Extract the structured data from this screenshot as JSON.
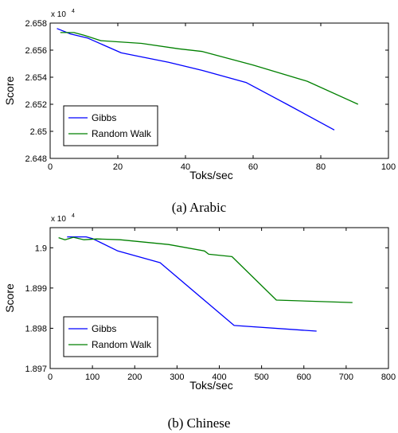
{
  "chart_data": [
    {
      "type": "line",
      "xlabel": "Toks/sec",
      "ylabel": "Score",
      "multiplier_label": "x 10",
      "multiplier_exp": "4",
      "xlim": [
        0,
        100
      ],
      "ylim": [
        2.648,
        2.658
      ],
      "xticks": [
        0,
        20,
        40,
        60,
        80,
        100
      ],
      "xtick_labels": [
        "0",
        "20",
        "40",
        "60",
        "80",
        "100"
      ],
      "yticks": [
        2.648,
        2.65,
        2.652,
        2.654,
        2.656,
        2.658
      ],
      "ytick_labels": [
        "2.648",
        "2.65",
        "2.652",
        "2.654",
        "2.656",
        "2.658"
      ],
      "legend_position": "lower-left",
      "caption": "(a) Arabic",
      "series": [
        {
          "name": "Gibbs",
          "color": "#0000ff",
          "x": [
            2,
            6,
            11,
            21,
            35,
            45,
            58,
            70,
            84
          ],
          "y": [
            2.6576,
            2.6572,
            2.6569,
            2.6558,
            2.6551,
            2.6545,
            2.6536,
            2.652,
            2.6501
          ]
        },
        {
          "name": "Random Walk",
          "color": "#008000",
          "x": [
            3,
            7,
            10,
            15,
            27,
            38,
            45,
            60,
            76,
            91
          ],
          "y": [
            2.6573,
            2.6573,
            2.6571,
            2.6567,
            2.6565,
            2.6561,
            2.6559,
            2.6549,
            2.6537,
            2.652
          ]
        }
      ]
    },
    {
      "type": "line",
      "xlabel": "Toks/sec",
      "ylabel": "Score",
      "multiplier_label": "x 10",
      "multiplier_exp": "4",
      "xlim": [
        0,
        800
      ],
      "ylim": [
        1.897,
        1.9005
      ],
      "xticks": [
        0,
        100,
        200,
        300,
        400,
        500,
        600,
        700,
        800
      ],
      "xtick_labels": [
        "0",
        "100",
        "200",
        "300",
        "400",
        "500",
        "600",
        "700",
        "800"
      ],
      "yticks": [
        1.897,
        1.898,
        1.899,
        1.9
      ],
      "ytick_labels": [
        "1.897",
        "1.898",
        "1.899",
        "1.9"
      ],
      "legend_position": "lower-left",
      "caption": "(b) Chinese",
      "series": [
        {
          "name": "Gibbs",
          "color": "#0000ff",
          "x": [
            40,
            60,
            85,
            100,
            160,
            260,
            435,
            630
          ],
          "y": [
            1.90027,
            1.90027,
            1.90027,
            1.90023,
            1.89992,
            1.89963,
            1.89807,
            1.89793
          ]
        },
        {
          "name": "Random Walk",
          "color": "#008000",
          "x": [
            20,
            35,
            55,
            80,
            110,
            165,
            280,
            365,
            375,
            430,
            535,
            715
          ],
          "y": [
            1.90025,
            1.9002,
            1.90026,
            1.9002,
            1.90022,
            1.9002,
            1.90008,
            1.89992,
            1.89984,
            1.89978,
            1.8987,
            1.89864
          ]
        }
      ]
    }
  ]
}
